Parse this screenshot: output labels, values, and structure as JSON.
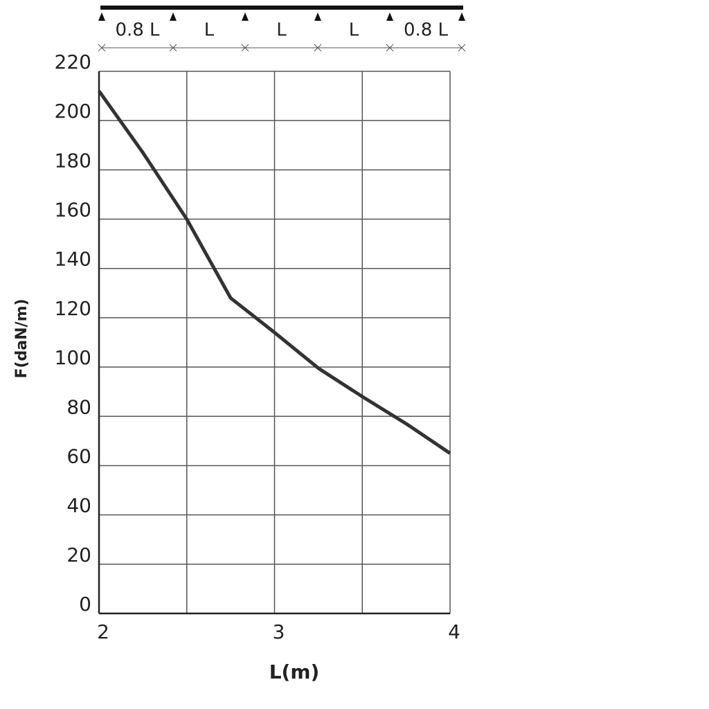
{
  "chart_data": {
    "type": "line",
    "beam_labels": [
      "0.8 L",
      "L",
      "L",
      "L",
      "0.8 L"
    ],
    "xlabel": "L(m)",
    "ylabel": "F(daN/m)",
    "x": [
      2,
      2.25,
      2.5,
      2.75,
      3,
      3.25,
      3.5,
      3.75,
      4
    ],
    "series": [
      {
        "color": "#333333",
        "values": [
          212,
          187,
          160,
          128,
          114,
          99.5,
          88,
          77,
          65
        ]
      }
    ],
    "xlim": [
      2,
      4
    ],
    "xticks": [
      2,
      3,
      4
    ],
    "xminorticks": [
      2.5,
      3.5
    ],
    "ylim": [
      0,
      220
    ],
    "yticks": [
      0,
      20,
      40,
      60,
      80,
      100,
      120,
      140,
      160,
      180,
      200,
      220
    ],
    "grid": true
  }
}
